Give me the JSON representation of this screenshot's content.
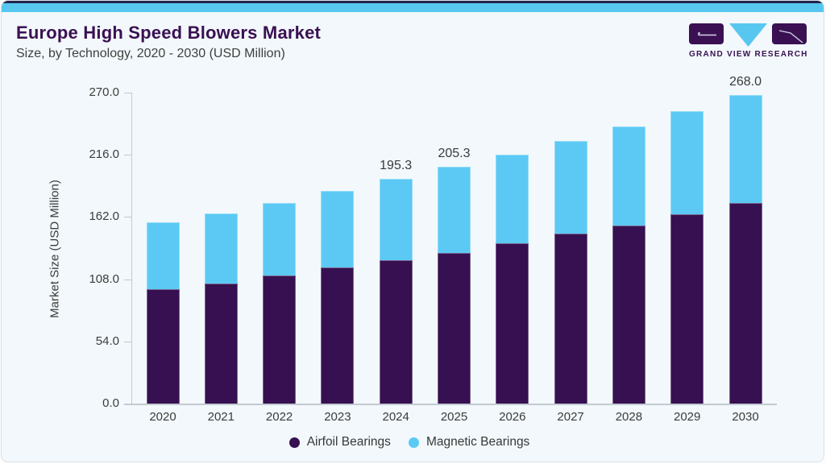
{
  "header": {
    "title": "Europe High Speed Blowers Market",
    "subtitle": "Size, by Technology, 2020 - 2030 (USD Million)"
  },
  "logo": {
    "text": "GRAND VIEW RESEARCH"
  },
  "colors": {
    "airfoil": "#361050",
    "magnetic": "#5bc9f4",
    "brand_purple": "#3a1053",
    "brand_blue": "#57c7f0",
    "axis_gray": "#c2cad1",
    "text_dark": "#3c3c3c",
    "card_bg": "#f2f8fb"
  },
  "chart_data": {
    "type": "bar",
    "stacked": true,
    "title": "Europe High Speed Blowers Market Size, by Technology, 2020 - 2030 (USD Million)",
    "categories": [
      "2020",
      "2021",
      "2022",
      "2023",
      "2024",
      "2025",
      "2026",
      "2027",
      "2028",
      "2029",
      "2030"
    ],
    "series": [
      {
        "name": "Airfoil Bearings",
        "color": "#361050",
        "values": [
          99.0,
          104.3,
          111.4,
          118.5,
          124.5,
          131.0,
          139.1,
          147.6,
          154.3,
          164.2,
          174.1
        ]
      },
      {
        "name": "Magnetic Bearings",
        "color": "#5bc9f4",
        "values": [
          58.2,
          61.0,
          62.8,
          66.2,
          70.8,
          74.3,
          77.2,
          80.5,
          86.4,
          89.4,
          93.9
        ]
      }
    ],
    "totals": [
      157.2,
      165.3,
      174.2,
      184.7,
      195.3,
      205.3,
      216.3,
      228.1,
      240.7,
      253.6,
      268.0
    ],
    "value_labels": {
      "2024": "195.3",
      "2025": "205.3",
      "2030": "268.0"
    },
    "xlabel": "",
    "ylabel": "Market Size (USD Million)",
    "ylim": [
      0,
      270
    ],
    "yticks": [
      0,
      54,
      108,
      162,
      216,
      270
    ],
    "ytick_labels": [
      "0.0",
      "54.0",
      "108.0",
      "162.0",
      "216.0",
      "270.0"
    ],
    "grid": false,
    "legend_position": "bottom"
  }
}
